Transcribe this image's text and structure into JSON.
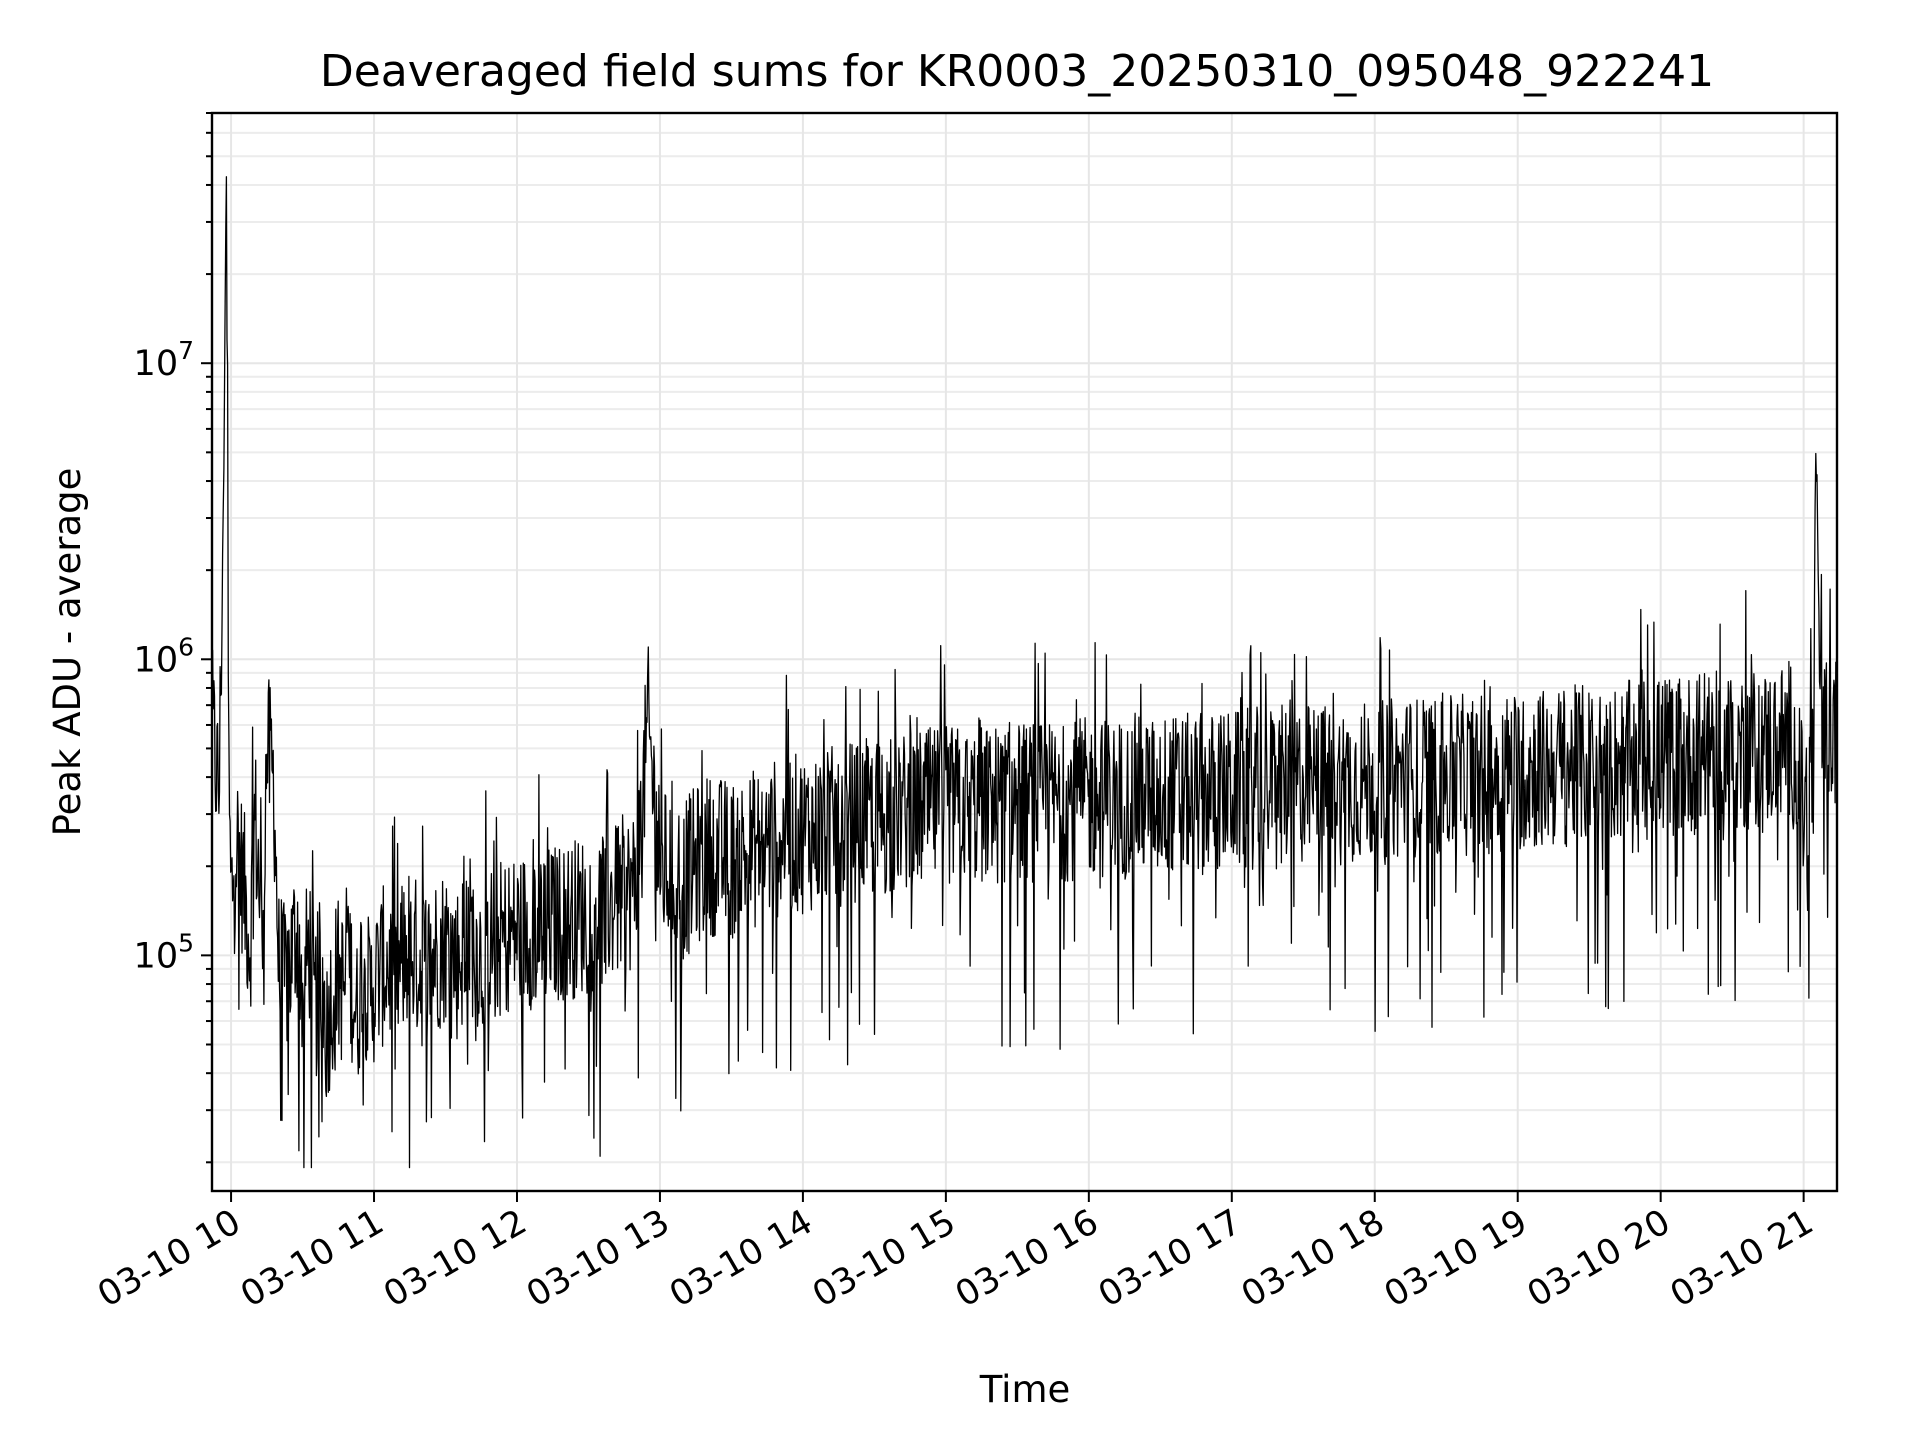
{
  "chart_data": {
    "type": "line",
    "title": "Deaveraged field sums for KR0003_20250310_095048_922241",
    "xlabel": "Time",
    "ylabel": "Peak ADU - average",
    "x_range": [
      "2025-03-10 09:52",
      "2025-03-10 21:14"
    ],
    "x_ticks": [
      "03-10 10",
      "03-10 11",
      "03-10 12",
      "03-10 13",
      "03-10 14",
      "03-10 15",
      "03-10 16",
      "03-10 17",
      "03-10 18",
      "03-10 19",
      "03-10 20",
      "03-10 21"
    ],
    "y_scale": "log",
    "ylim": [
      16000,
      70000000
    ],
    "y_ticks": [
      {
        "base": "10",
        "exp": "5",
        "value": 100000
      },
      {
        "base": "10",
        "exp": "6",
        "value": 1000000
      },
      {
        "base": "10",
        "exp": "7",
        "value": 10000000
      }
    ],
    "grid": true,
    "line_color": "#000000",
    "series": [
      {
        "values_note": "",
        "x": [
          "09:52",
          "09:55",
          "09:57",
          "09:58",
          "09:59",
          "10:00",
          "10:02",
          "10:05",
          "10:08",
          "10:10",
          "10:13",
          "10:15",
          "10:18",
          "10:20",
          "10:22",
          "10:25",
          "10:28",
          "10:30",
          "10:33",
          "10:35",
          "10:38",
          "10:40",
          "10:43",
          "10:45",
          "10:48",
          "10:50",
          "10:53",
          "10:55",
          "10:58",
          "11:00",
          "11:05",
          "11:10",
          "11:15",
          "11:20",
          "11:25",
          "11:30",
          "11:35",
          "11:40",
          "11:45",
          "11:50",
          "11:55",
          "12:00",
          "12:10",
          "12:20",
          "12:30",
          "12:40",
          "12:50",
          "12:55",
          "13:00",
          "13:10",
          "13:20",
          "13:30",
          "13:40",
          "13:50",
          "14:00",
          "14:10",
          "14:20",
          "14:30",
          "14:40",
          "14:50",
          "15:00",
          "15:15",
          "15:30",
          "15:45",
          "16:00",
          "16:15",
          "16:30",
          "16:45",
          "17:00",
          "17:15",
          "17:30",
          "17:45",
          "18:00",
          "18:15",
          "18:30",
          "18:45",
          "19:00",
          "19:15",
          "19:30",
          "19:45",
          "20:00",
          "20:15",
          "20:30",
          "20:45",
          "20:50",
          "20:55",
          "21:00",
          "21:04",
          "21:05",
          "21:08",
          "21:10",
          "21:14"
        ],
        "y": [
          600000,
          350000,
          4500000,
          50000000,
          400000,
          150000,
          250000,
          180000,
          110000,
          300000,
          120000,
          500000,
          380000,
          90000,
          80000,
          95000,
          130000,
          75000,
          110000,
          65000,
          90000,
          55000,
          80000,
          85000,
          75000,
          90000,
          60000,
          100000,
          70000,
          80000,
          95000,
          85000,
          110000,
          90000,
          100000,
          110000,
          95000,
          120000,
          100000,
          110000,
          115000,
          120000,
          125000,
          130000,
          140000,
          150000,
          170000,
          600000,
          200000,
          180000,
          220000,
          210000,
          230000,
          250000,
          260000,
          270000,
          280000,
          290000,
          300000,
          310000,
          320000,
          320000,
          330000,
          330000,
          340000,
          340000,
          350000,
          350000,
          360000,
          370000,
          380000,
          380000,
          390000,
          400000,
          400000,
          410000,
          420000,
          430000,
          440000,
          450000,
          470000,
          480000,
          490000,
          500000,
          520000,
          540000,
          300000,
          380000,
          5300000,
          450000,
          600000,
          560000
        ]
      }
    ]
  }
}
